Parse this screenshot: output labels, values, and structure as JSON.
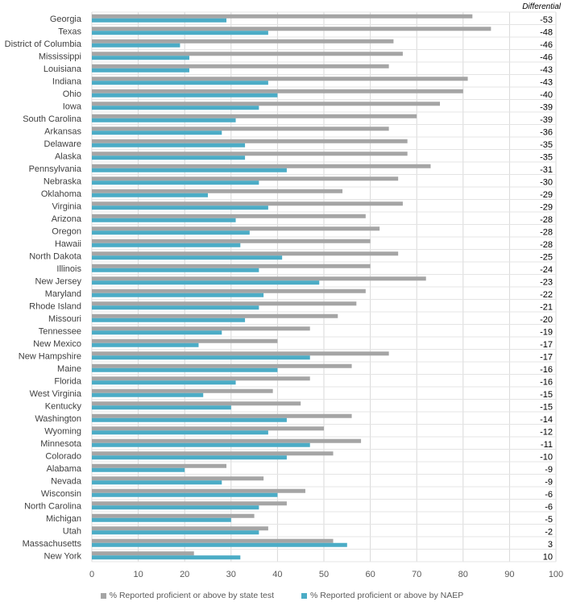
{
  "chart_data": {
    "type": "bar",
    "orientation": "horizontal",
    "title": "",
    "xlabel": "",
    "ylabel": "",
    "xlim": [
      0,
      100
    ],
    "xticks": [
      0,
      10,
      20,
      30,
      40,
      50,
      60,
      70,
      80,
      90,
      100
    ],
    "grid": true,
    "legend_position": "bottom",
    "categories": [
      "Georgia",
      "Texas",
      "District of Columbia",
      "Mississippi",
      "Louisiana",
      "Indiana",
      "Ohio",
      "Iowa",
      "South Carolina",
      "Arkansas",
      "Delaware",
      "Alaska",
      "Pennsylvania",
      "Nebraska",
      "Oklahoma",
      "Virginia",
      "Arizona",
      "Oregon",
      "Hawaii",
      "North Dakota",
      "Illinois",
      "New Jersey",
      "Maryland",
      "Rhode Island",
      "Missouri",
      "Tennessee",
      "New Mexico",
      "New Hampshire",
      "Maine",
      "Florida",
      "West Virginia",
      "Kentucky",
      "Washington",
      "Wyoming",
      "Minnesota",
      "Colorado",
      "Alabama",
      "Nevada",
      "Wisconsin",
      "North Carolina",
      "Michigan",
      "Utah",
      "Massachusetts",
      "New York"
    ],
    "series": [
      {
        "name": "% Reported proficient or above by state test",
        "color": "#a5a5a5",
        "values": [
          82,
          86,
          65,
          67,
          64,
          81,
          80,
          75,
          70,
          64,
          68,
          68,
          73,
          66,
          54,
          67,
          59,
          62,
          60,
          66,
          60,
          72,
          59,
          57,
          53,
          47,
          40,
          64,
          56,
          47,
          39,
          45,
          56,
          50,
          58,
          52,
          29,
          37,
          46,
          42,
          35,
          38,
          52,
          22
        ]
      },
      {
        "name": "% Reported proficient or above by NAEP",
        "color": "#4bacc6",
        "values": [
          29,
          38,
          19,
          21,
          21,
          38,
          40,
          36,
          31,
          28,
          33,
          33,
          42,
          36,
          25,
          38,
          31,
          34,
          32,
          41,
          36,
          49,
          37,
          36,
          33,
          28,
          23,
          47,
          40,
          31,
          24,
          30,
          42,
          38,
          47,
          42,
          20,
          28,
          40,
          36,
          30,
          36,
          55,
          32
        ]
      }
    ],
    "differential_header": "Differential",
    "differential": [
      "-53",
      "-48",
      "-46",
      "-46",
      "-43",
      "-43",
      "-40",
      "-39",
      "-39",
      "-36",
      "-35",
      "-35",
      "-31",
      "-30",
      "-29",
      "-29",
      "-28",
      "-28",
      "-28",
      "-25",
      "-24",
      "-23",
      "-22",
      "-21",
      "-20",
      "-19",
      "-17",
      "-17",
      "-16",
      "-16",
      "-15",
      "-15",
      "-14",
      "-12",
      "-11",
      "-10",
      "-9",
      "-9",
      "-6",
      "-6",
      "-5",
      "-2",
      "3",
      "10"
    ]
  }
}
